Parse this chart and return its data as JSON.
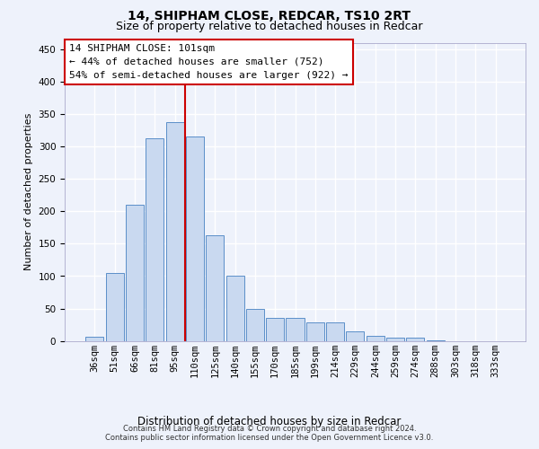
{
  "title1": "14, SHIPHAM CLOSE, REDCAR, TS10 2RT",
  "title2": "Size of property relative to detached houses in Redcar",
  "xlabel": "Distribution of detached houses by size in Redcar",
  "ylabel": "Number of detached properties",
  "categories": [
    "36sqm",
    "51sqm",
    "66sqm",
    "81sqm",
    "95sqm",
    "110sqm",
    "125sqm",
    "140sqm",
    "155sqm",
    "170sqm",
    "185sqm",
    "199sqm",
    "214sqm",
    "229sqm",
    "244sqm",
    "259sqm",
    "274sqm",
    "288sqm",
    "303sqm",
    "318sqm",
    "333sqm"
  ],
  "values": [
    6,
    105,
    210,
    313,
    338,
    315,
    163,
    100,
    50,
    35,
    35,
    29,
    29,
    15,
    8,
    5,
    5,
    1,
    0,
    0,
    0
  ],
  "bar_color": "#c9d9f0",
  "bar_edge_color": "#5b8fc9",
  "vline_pos": 4.5,
  "vline_color": "#cc0000",
  "annot_line1": "14 SHIPHAM CLOSE: 101sqm",
  "annot_line2": "← 44% of detached houses are smaller (752)",
  "annot_line3": "54% of semi-detached houses are larger (922) →",
  "annotation_box_color": "#ffffff",
  "annotation_box_edge": "#cc0000",
  "ylim": [
    0,
    460
  ],
  "yticks": [
    0,
    50,
    100,
    150,
    200,
    250,
    300,
    350,
    400,
    450
  ],
  "footer1": "Contains HM Land Registry data © Crown copyright and database right 2024.",
  "footer2": "Contains public sector information licensed under the Open Government Licence v3.0.",
  "background_color": "#eef2fb",
  "grid_color": "#ffffff",
  "title1_fontsize": 10,
  "title2_fontsize": 9,
  "xlabel_fontsize": 8.5,
  "ylabel_fontsize": 8,
  "tick_fontsize": 7.5,
  "annot_fontsize": 8,
  "footer_fontsize": 6
}
